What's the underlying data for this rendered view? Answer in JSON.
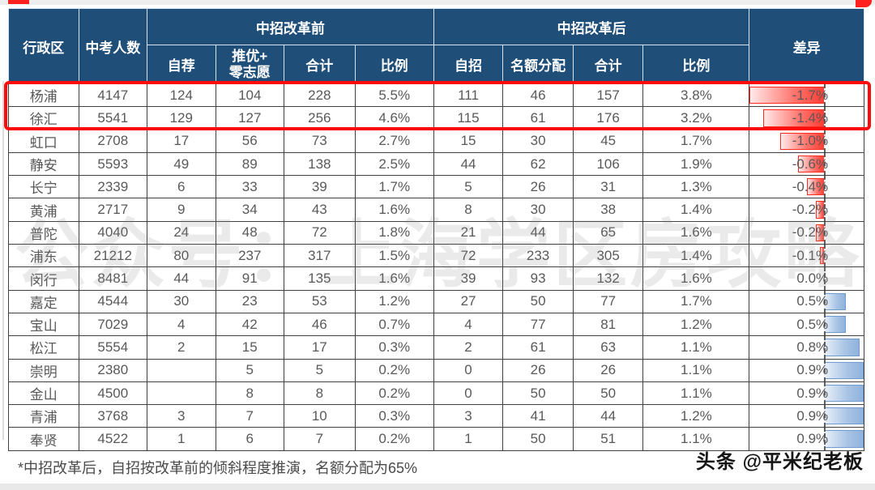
{
  "header": {
    "district": "行政区",
    "candidates": "中考人数",
    "pre_group": "中招改革前",
    "post_group": "中招改革后",
    "pre_cols": [
      "自荐",
      "推优+\n零志愿",
      "合计",
      "比例"
    ],
    "post_cols": [
      "自招",
      "名额分配",
      "合计",
      "比例"
    ],
    "diff": "差异"
  },
  "chart_data": {
    "type": "table",
    "column_groups": {
      "pre": "中招改革前",
      "post": "中招改革后"
    },
    "columns": [
      "行政区",
      "中考人数",
      "自荐",
      "推优+零志愿",
      "合计",
      "比例",
      "自招",
      "名额分配",
      "合计",
      "比例",
      "差异"
    ],
    "rows": [
      {
        "district": "杨浦",
        "values": [
          "4147",
          "124",
          "104",
          "228",
          "5.5%",
          "111",
          "46",
          "157",
          "3.8%"
        ],
        "diff_label": "-1.7%",
        "diff_value": -1.7,
        "highlighted": true
      },
      {
        "district": "徐汇",
        "values": [
          "5541",
          "129",
          "127",
          "256",
          "4.6%",
          "115",
          "61",
          "176",
          "3.2%"
        ],
        "diff_label": "-1.4%",
        "diff_value": -1.4,
        "highlighted": true
      },
      {
        "district": "虹口",
        "values": [
          "2708",
          "17",
          "56",
          "73",
          "2.7%",
          "15",
          "30",
          "45",
          "1.7%"
        ],
        "diff_label": "-1.0%",
        "diff_value": -1.0,
        "highlighted": false
      },
      {
        "district": "静安",
        "values": [
          "5593",
          "49",
          "89",
          "138",
          "2.5%",
          "44",
          "62",
          "106",
          "1.9%"
        ],
        "diff_label": "-0.6%",
        "diff_value": -0.6,
        "highlighted": false
      },
      {
        "district": "长宁",
        "values": [
          "2339",
          "6",
          "33",
          "39",
          "1.7%",
          "5",
          "26",
          "31",
          "1.3%"
        ],
        "diff_label": "-0.4%",
        "diff_value": -0.4,
        "highlighted": false
      },
      {
        "district": "黄浦",
        "values": [
          "2717",
          "9",
          "34",
          "43",
          "1.6%",
          "8",
          "30",
          "38",
          "1.4%"
        ],
        "diff_label": "-0.2%",
        "diff_value": -0.2,
        "highlighted": false
      },
      {
        "district": "普陀",
        "values": [
          "4040",
          "24",
          "48",
          "72",
          "1.8%",
          "21",
          "44",
          "65",
          "1.6%"
        ],
        "diff_label": "-0.2%",
        "diff_value": -0.2,
        "highlighted": false
      },
      {
        "district": "浦东",
        "values": [
          "21212",
          "80",
          "237",
          "317",
          "1.5%",
          "72",
          "233",
          "305",
          "1.4%"
        ],
        "diff_label": "-0.1%",
        "diff_value": -0.1,
        "highlighted": false
      },
      {
        "district": "闵行",
        "values": [
          "8481",
          "44",
          "91",
          "135",
          "1.6%",
          "39",
          "93",
          "132",
          "1.6%"
        ],
        "diff_label": "0.0%",
        "diff_value": 0.0,
        "highlighted": false
      },
      {
        "district": "嘉定",
        "values": [
          "4544",
          "30",
          "23",
          "53",
          "1.2%",
          "27",
          "50",
          "77",
          "1.7%"
        ],
        "diff_label": "0.5%",
        "diff_value": 0.5,
        "highlighted": false
      },
      {
        "district": "宝山",
        "values": [
          "7029",
          "4",
          "42",
          "46",
          "0.7%",
          "4",
          "77",
          "81",
          "1.2%"
        ],
        "diff_label": "0.5%",
        "diff_value": 0.5,
        "highlighted": false
      },
      {
        "district": "松江",
        "values": [
          "5554",
          "2",
          "15",
          "17",
          "0.3%",
          "2",
          "61",
          "63",
          "1.1%"
        ],
        "diff_label": "0.8%",
        "diff_value": 0.8,
        "highlighted": false
      },
      {
        "district": "崇明",
        "values": [
          "2380",
          "",
          "5",
          "5",
          "0.2%",
          "0",
          "26",
          "26",
          "1.1%"
        ],
        "diff_label": "0.9%",
        "diff_value": 0.9,
        "highlighted": false
      },
      {
        "district": "金山",
        "values": [
          "4500",
          "",
          "8",
          "8",
          "0.2%",
          "0",
          "50",
          "50",
          "1.1%"
        ],
        "diff_label": "0.9%",
        "diff_value": 0.9,
        "highlighted": false
      },
      {
        "district": "青浦",
        "values": [
          "3768",
          "3",
          "7",
          "10",
          "0.3%",
          "3",
          "41",
          "44",
          "1.2%"
        ],
        "diff_label": "0.9%",
        "diff_value": 0.9,
        "highlighted": false
      },
      {
        "district": "奉贤",
        "values": [
          "4522",
          "1",
          "6",
          "7",
          "0.2%",
          "1",
          "50",
          "51",
          "1.1%"
        ],
        "diff_label": "0.9%",
        "diff_value": 0.9,
        "highlighted": false
      }
    ],
    "diff_bar": {
      "min": -1.7,
      "max": 0.9,
      "axis_fraction": 0.654,
      "negative_color": "#ff3d34",
      "positive_color": "#8fb2dd"
    }
  },
  "watermark": "公众号：上海学区房攻略",
  "footnote": "*中招改革后，自招按改革前的倾斜程度推演，名额分配为65%",
  "credit": "头条 @平米纪老板",
  "colors": {
    "header_bg": "#1f4e79",
    "header_text": "#ffffff",
    "cell_text": "#595959",
    "grid": "#404040",
    "highlight_border": "#fe0b0b"
  }
}
